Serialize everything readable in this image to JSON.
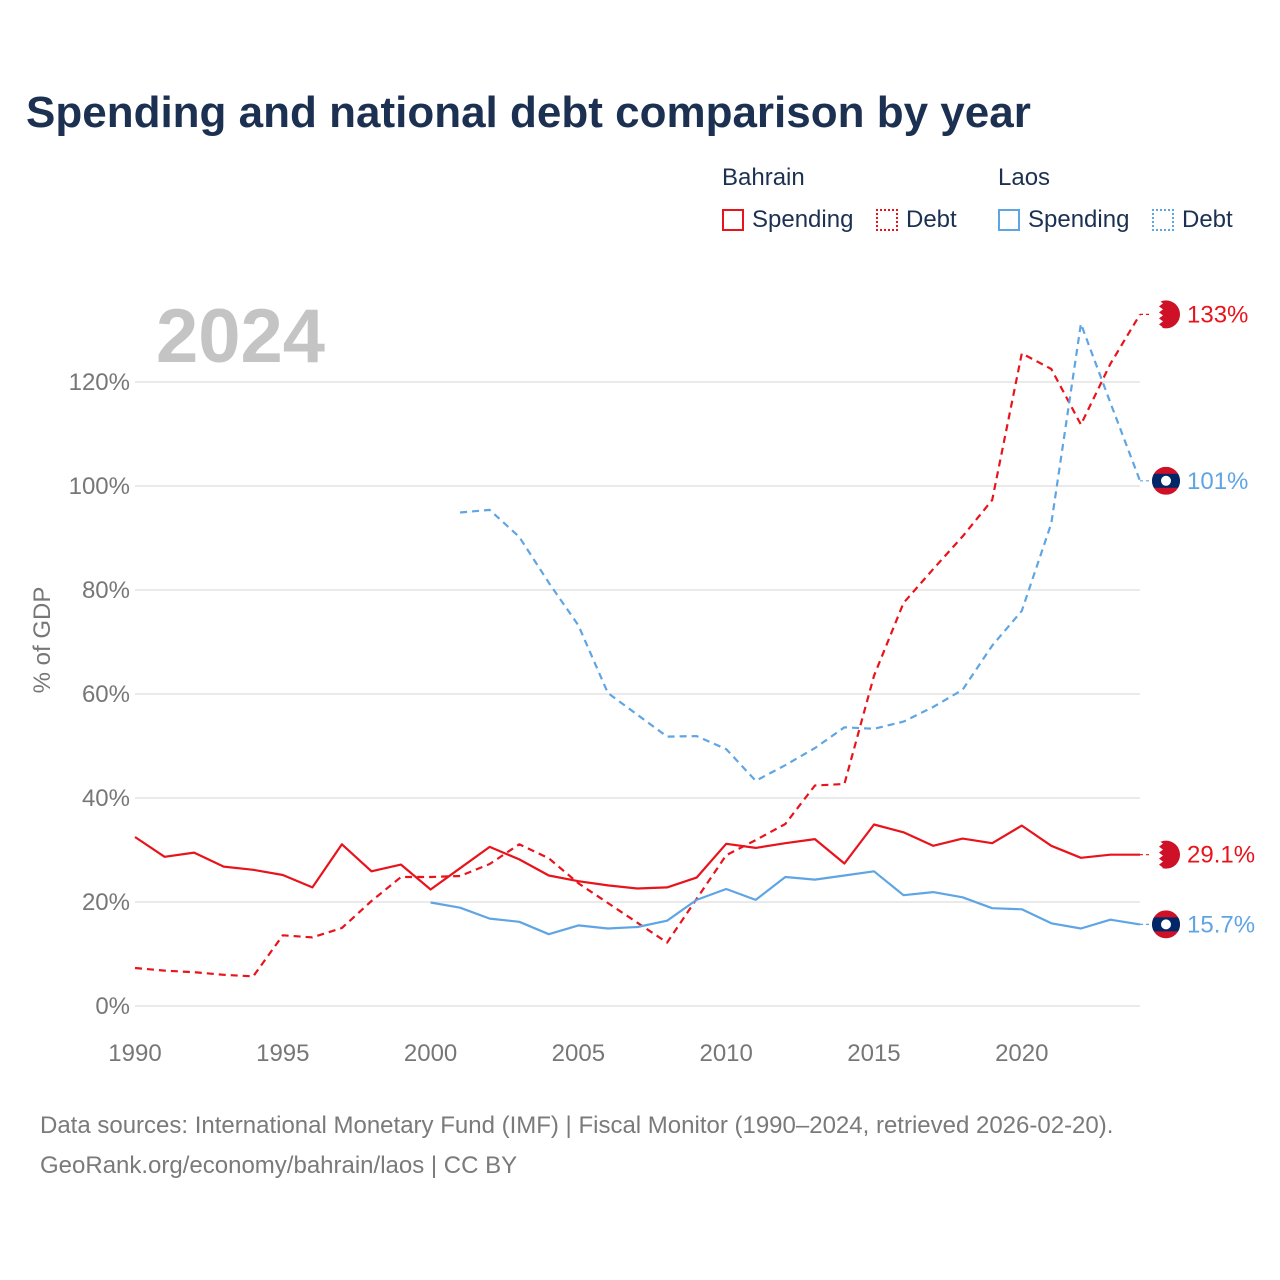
{
  "title": "Spending and national debt comparison by year",
  "colors": {
    "bahrain": "#e8131b",
    "laos": "#5fa5e4",
    "title": "#1c3152",
    "grid": "#e4e4e4",
    "axis_text": "#777777",
    "year_watermark": "#c4c4c4"
  },
  "legend": {
    "bahrain": {
      "country": "Bahrain",
      "spending": "Spending",
      "debt": "Debt"
    },
    "laos": {
      "country": "Laos",
      "spending": "Spending",
      "debt": "Debt"
    }
  },
  "source": {
    "line1": "Data sources: International Monetary Fund (IMF) | Fiscal Monitor (1990–2024, retrieved 2026-02-20).",
    "line2": "GeoRank.org/economy/bahrain/laos | CC BY"
  },
  "chart_data": {
    "type": "line",
    "watermark_year": "2024",
    "ylabel": "% of GDP",
    "xlim": [
      1990,
      2024
    ],
    "ylim": [
      0,
      140
    ],
    "x_ticks": [
      1990,
      1995,
      2000,
      2005,
      2010,
      2015,
      2020
    ],
    "y_ticks": [
      0,
      20,
      40,
      60,
      80,
      100,
      120
    ],
    "y_tick_labels": [
      "0%",
      "20%",
      "40%",
      "60%",
      "80%",
      "100%",
      "120%"
    ],
    "series": [
      {
        "name": "Bahrain Spending",
        "country": "Bahrain",
        "style": "solid",
        "color": "#e8131b",
        "x": [
          1990,
          1991,
          1992,
          1993,
          1994,
          1995,
          1996,
          1997,
          1998,
          1999,
          2000,
          2001,
          2002,
          2003,
          2004,
          2005,
          2006,
          2007,
          2008,
          2009,
          2010,
          2011,
          2012,
          2013,
          2014,
          2015,
          2016,
          2017,
          2018,
          2019,
          2020,
          2021,
          2022,
          2023,
          2024
        ],
        "values": [
          32.5,
          28.7,
          29.5,
          26.8,
          26.2,
          25.2,
          22.8,
          31.1,
          25.9,
          27.2,
          22.4,
          26.5,
          30.6,
          28.2,
          25.1,
          24.0,
          23.2,
          22.6,
          22.8,
          24.7,
          31.2,
          30.4,
          31.3,
          32.1,
          27.4,
          34.9,
          33.4,
          30.8,
          32.2,
          31.3,
          34.7,
          30.8,
          28.5,
          29.1,
          29.1
        ],
        "end_label": "29.1%"
      },
      {
        "name": "Bahrain Debt",
        "country": "Bahrain",
        "style": "dashed",
        "color": "#e8131b",
        "x": [
          1990,
          1991,
          1992,
          1993,
          1994,
          1995,
          1996,
          1997,
          1998,
          1999,
          2000,
          2001,
          2002,
          2003,
          2004,
          2005,
          2006,
          2007,
          2008,
          2009,
          2010,
          2011,
          2012,
          2013,
          2014,
          2015,
          2016,
          2017,
          2018,
          2019,
          2020,
          2021,
          2022,
          2023,
          2024
        ],
        "values": [
          7.3,
          6.8,
          6.5,
          6.0,
          5.7,
          13.6,
          13.2,
          15.0,
          20.2,
          24.8,
          24.8,
          25.0,
          27.3,
          31.1,
          28.4,
          23.6,
          19.8,
          16.0,
          12.2,
          20.6,
          29.0,
          31.9,
          35.0,
          42.4,
          42.7,
          63.5,
          77.5,
          84.0,
          90.3,
          97.3,
          125.5,
          122.5,
          111.8,
          123.5,
          133.0
        ],
        "end_label": "133%"
      },
      {
        "name": "Laos Spending",
        "country": "Laos",
        "style": "solid",
        "color": "#5fa5e4",
        "x": [
          2000,
          2001,
          2002,
          2003,
          2004,
          2005,
          2006,
          2007,
          2008,
          2009,
          2010,
          2011,
          2012,
          2013,
          2014,
          2015,
          2016,
          2017,
          2018,
          2019,
          2020,
          2021,
          2022,
          2023,
          2024
        ],
        "values": [
          19.9,
          18.9,
          16.8,
          16.2,
          13.8,
          15.5,
          14.9,
          15.2,
          16.4,
          20.4,
          22.5,
          20.4,
          24.8,
          24.3,
          25.1,
          25.9,
          21.3,
          21.9,
          20.9,
          18.8,
          18.6,
          15.9,
          14.9,
          16.6,
          15.7
        ],
        "end_label": "15.7%"
      },
      {
        "name": "Laos Debt",
        "country": "Laos",
        "style": "dashed",
        "color": "#5fa5e4",
        "x": [
          2001,
          2002,
          2003,
          2004,
          2005,
          2006,
          2007,
          2008,
          2009,
          2010,
          2011,
          2012,
          2013,
          2014,
          2015,
          2016,
          2017,
          2018,
          2019,
          2020,
          2021,
          2022,
          2023,
          2024
        ],
        "values": [
          94.9,
          95.4,
          90.2,
          81.4,
          73.2,
          60.2,
          56.0,
          51.8,
          51.9,
          49.4,
          43.3,
          46.3,
          49.6,
          53.6,
          53.3,
          54.7,
          57.5,
          60.8,
          69.3,
          76.0,
          92.8,
          131.2,
          116.0,
          101.0
        ],
        "end_label": "101%"
      }
    ]
  }
}
